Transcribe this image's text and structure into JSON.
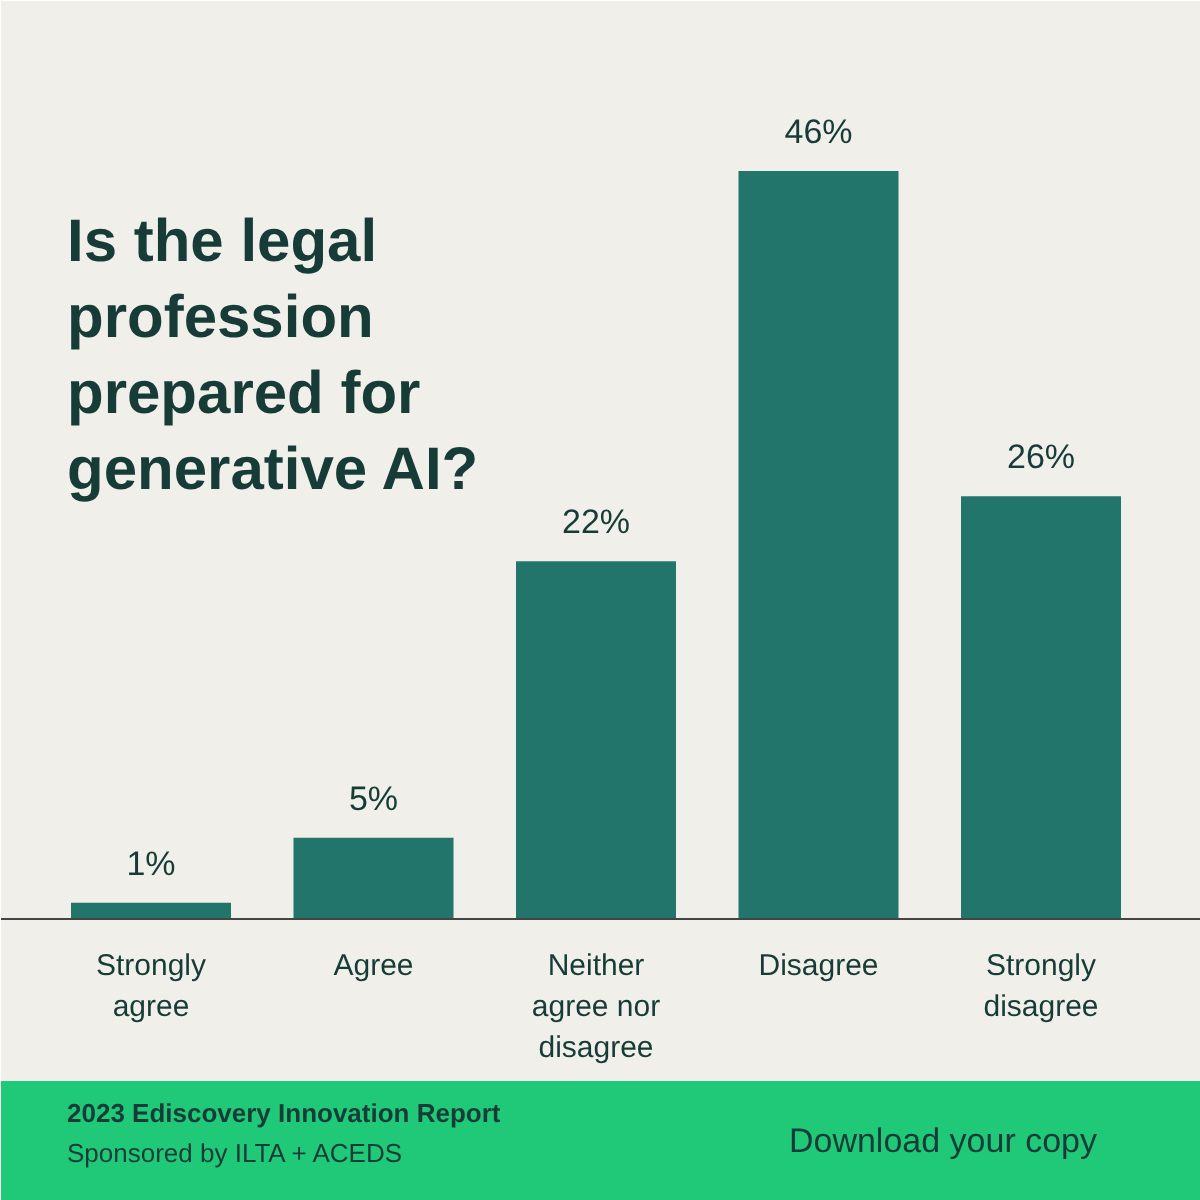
{
  "chart_data": {
    "type": "bar",
    "title": "Is the legal profession prepared for generative AI?",
    "categories": [
      "Strongly agree",
      "Agree",
      "Neither agree nor disagree",
      "Disagree",
      "Strongly disagree"
    ],
    "values": [
      1,
      5,
      22,
      46,
      26
    ],
    "value_labels": [
      "1%",
      "5%",
      "22%",
      "46%",
      "26%"
    ],
    "color": "#22756b",
    "annotations": [
      "2023 Ediscovery Innovation Report",
      "Sponsored by ILTA + ACEDS",
      "Download your copy"
    ]
  }
}
